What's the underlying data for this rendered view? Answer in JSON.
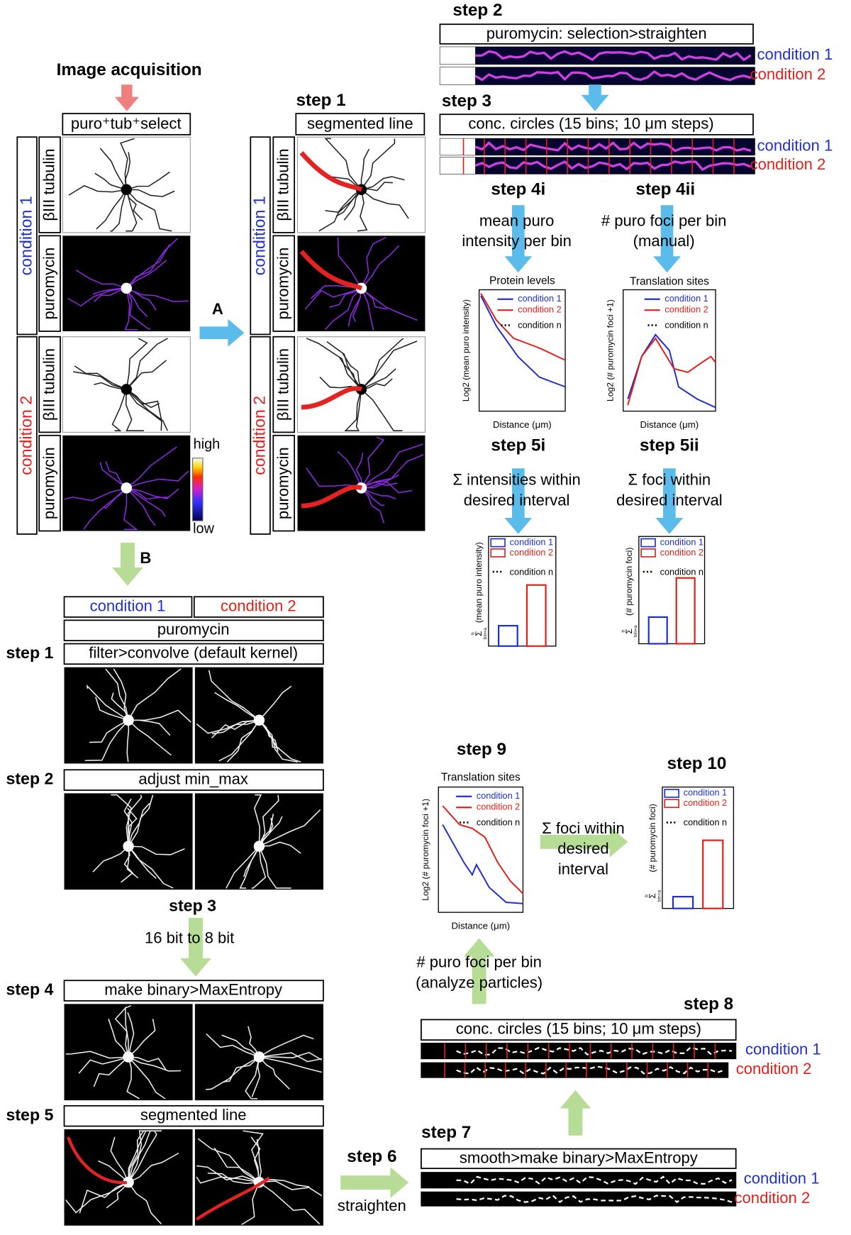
{
  "acquisition": {
    "title": "Image acquisition",
    "select": "puro⁺tub⁺select",
    "conditions": [
      "condition 1",
      "condition 2"
    ],
    "channels": [
      "βIII tubulin",
      "puromycin"
    ],
    "colorbar": {
      "high": "high",
      "low": "low"
    }
  },
  "segmentation": {
    "step": "step 1",
    "label": "segmented line",
    "conditions": [
      "condition 1",
      "condition 2"
    ],
    "channels": [
      "βIII tubulin",
      "puromycin"
    ]
  },
  "arrows": {
    "a": "A",
    "b": "B"
  },
  "workflow_a": {
    "step2": {
      "step": "step 2",
      "label": "puromycin: selection>straighten",
      "conditions": [
        "condition 1",
        "condition 2"
      ]
    },
    "step3": {
      "step": "step 3",
      "label": "conc. circles (15 bins; 10 μm steps)",
      "conditions": [
        "condition 1",
        "condition 2"
      ]
    },
    "step4i": {
      "step": "step 4i",
      "lines": [
        "mean puro",
        "intensity per bin"
      ]
    },
    "step4ii": {
      "step": "step 4ii",
      "lines": [
        "# puro foci per bin",
        "(manual)"
      ]
    },
    "plot4i": {
      "title": "Protein levels",
      "y_label": "Log2 (mean puro intensity)",
      "x_label": "Distance (μm)",
      "legend": [
        "condition 1",
        "condition 2",
        "condition n"
      ]
    },
    "plot4ii": {
      "title": "Translation sites",
      "y_label": "Log2 (# puromycin foci +1)",
      "x_label": "Distance (μm)",
      "legend": [
        "condition 1",
        "condition 2",
        "condition n"
      ]
    },
    "step5i": {
      "step": "step 5i",
      "lines": [
        "Σ intensities within",
        "desired interval"
      ]
    },
    "step5ii": {
      "step": "step 5ii",
      "lines": [
        "Σ foci within",
        "desired interval"
      ]
    },
    "plot5i": {
      "y_label": "(mean puro intensity)",
      "sum": "Σ",
      "sum_lower": "bin=a",
      "sum_upper": "b",
      "legend": [
        "condition 1",
        "condition 2",
        "condition n"
      ]
    },
    "plot5ii": {
      "y_label": "(# puromycin foci)",
      "sum": "Σ",
      "sum_lower": "bin=a",
      "sum_upper": "b",
      "legend": [
        "condition 1",
        "condition 2",
        "condition n"
      ]
    }
  },
  "workflow_b": {
    "conditions": [
      "condition 1",
      "condition 2"
    ],
    "channel": "puromycin",
    "step1": {
      "step": "step 1",
      "label": "filter>convolve (default kernel)"
    },
    "step2": {
      "step": "step 2",
      "label": "adjust min_max"
    },
    "step3": {
      "step": "step 3",
      "label": "16 bit to 8 bit"
    },
    "step4": {
      "step": "step 4",
      "label": "make binary>MaxEntropy"
    },
    "step5": {
      "step": "step 5",
      "label": "segmented line"
    },
    "step6": {
      "step": "step 6",
      "label": "straighten"
    },
    "step7": {
      "step": "step 7",
      "label": "smooth>make binary>MaxEntropy",
      "conditions": [
        "condition 1",
        "condition 2"
      ]
    },
    "step8": {
      "step": "step 8",
      "label": "conc. circles (15 bins; 10 μm steps)",
      "conditions": [
        "condition 1",
        "condition 2"
      ]
    },
    "particles": {
      "lines": [
        "# puro foci per bin",
        "(analyze particles)"
      ]
    },
    "step9": {
      "step": "step 9",
      "plot": {
        "title": "Translation sites",
        "y_label": "Log2 (# puromycin foci +1)",
        "x_label": "Distance (μm)",
        "legend": [
          "condition 1",
          "condition 2",
          "condition n"
        ]
      }
    },
    "interval": {
      "lines": [
        "Σ foci within",
        "desired",
        "interval"
      ]
    },
    "step10": {
      "step": "step 10",
      "plot": {
        "y_label": "(# puromycin foci)",
        "sum": "Σ",
        "sum_lower": "bin=a",
        "sum_upper": "b",
        "legend": [
          "condition 1",
          "condition 2",
          "condition n"
        ]
      }
    }
  }
}
